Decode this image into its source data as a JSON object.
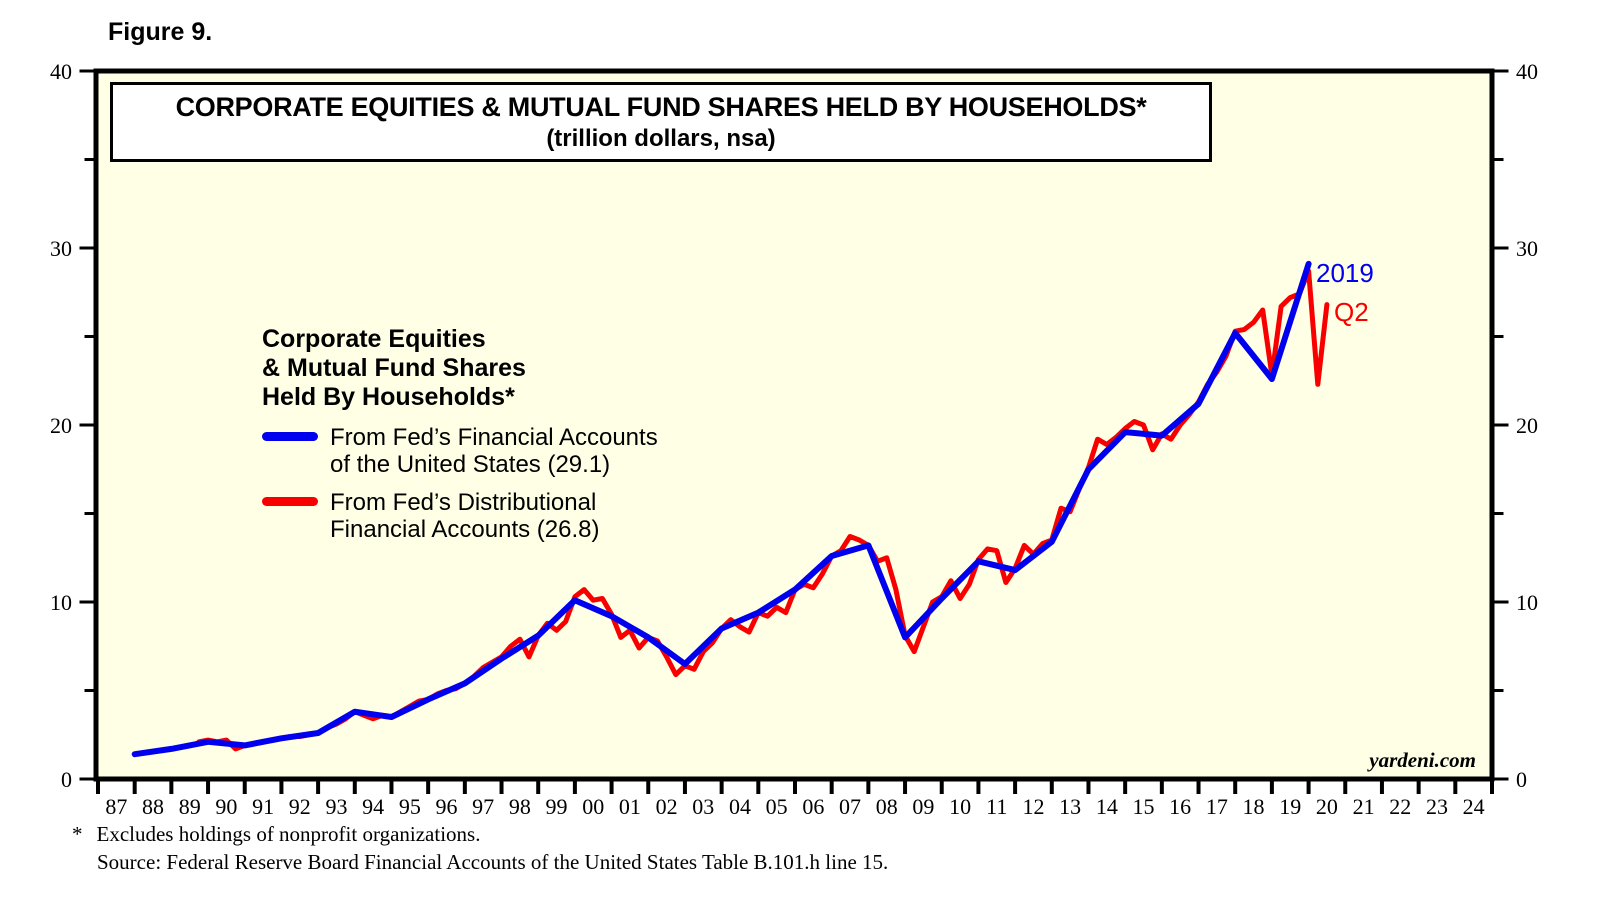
{
  "figure_label": "Figure 9.",
  "title": {
    "line1": "CORPORATE EQUITIES & MUTUAL FUND SHARES HELD BY HOUSEHOLDS*",
    "line2": "(trillion dollars, nsa)"
  },
  "legend": {
    "header_lines": [
      "Corporate Equities",
      "& Mutual Fund Shares",
      "Held By Households*"
    ],
    "items": [
      {
        "color": "#0000EE",
        "label_lines": [
          "From Fed’s Financial Accounts",
          "of the United States (29.1)"
        ]
      },
      {
        "color": "#F80000",
        "label_lines": [
          "From Fed’s Distributional",
          "Financial Accounts (26.8)"
        ]
      }
    ]
  },
  "annotations": [
    {
      "text": "2019",
      "color": "#0000EE"
    },
    {
      "text": "Q2",
      "color": "#F80000"
    }
  ],
  "watermark": "yardeni.com",
  "footnotes": {
    "asterisk": "*",
    "line1": "Excludes holdings of nonprofit organizations.",
    "line2": "Source: Federal Reserve Board Financial Accounts of the United States Table B.101.h line 15."
  },
  "chart_data": {
    "type": "line",
    "title": "CORPORATE EQUITIES & MUTUAL FUND SHARES HELD BY HOUSEHOLDS*",
    "subtitle": "(trillion dollars, nsa)",
    "background": "#FFFFE6",
    "ylim": [
      0,
      40
    ],
    "y_ticks": [
      0,
      10,
      20,
      30,
      40
    ],
    "y_minor_step": 5,
    "x_labels": [
      "87",
      "88",
      "89",
      "90",
      "91",
      "92",
      "93",
      "94",
      "95",
      "96",
      "97",
      "98",
      "99",
      "00",
      "01",
      "02",
      "03",
      "04",
      "05",
      "06",
      "07",
      "08",
      "09",
      "10",
      "11",
      "12",
      "13",
      "14",
      "15",
      "16",
      "17",
      "18",
      "19",
      "20",
      "21",
      "22",
      "23",
      "24"
    ],
    "legend_position": "upper-left",
    "grid": false,
    "series": [
      {
        "name": "From Fed's Financial Accounts of the United States",
        "latest_label": "2019",
        "latest_value": 29.1,
        "color": "#0000EE",
        "frequency": "annual",
        "start_year": 1987,
        "end_year": 2019,
        "values": [
          1.4,
          1.7,
          2.1,
          1.9,
          2.3,
          2.6,
          3.8,
          3.5,
          4.5,
          5.4,
          6.8,
          8.1,
          10.1,
          9.2,
          8.0,
          6.5,
          8.5,
          9.4,
          10.7,
          12.6,
          13.2,
          8.0,
          10.2,
          12.3,
          11.8,
          13.4,
          17.5,
          19.6,
          19.4,
          21.2,
          25.2,
          22.6,
          29.1
        ]
      },
      {
        "name": "From Fed's Distributional Financial Accounts",
        "latest_label": "Q2",
        "latest_value": 26.8,
        "color": "#F80000",
        "frequency": "quarterly",
        "start": "1989Q3",
        "end": "2020Q2",
        "values": [
          2.1,
          2.2,
          2.1,
          2.2,
          1.7,
          1.9,
          2.0,
          2.1,
          2.2,
          2.3,
          2.4,
          2.4,
          2.5,
          2.6,
          2.9,
          3.1,
          3.4,
          3.8,
          3.6,
          3.4,
          3.6,
          3.5,
          3.8,
          4.1,
          4.4,
          4.5,
          4.8,
          5.0,
          5.1,
          5.4,
          5.8,
          6.3,
          6.6,
          6.9,
          7.5,
          7.9,
          6.9,
          8.1,
          8.8,
          8.4,
          8.9,
          10.3,
          10.7,
          10.1,
          10.2,
          9.3,
          8.0,
          8.4,
          7.4,
          8.0,
          7.8,
          6.9,
          5.9,
          6.4,
          6.2,
          7.2,
          7.7,
          8.5,
          9.0,
          8.6,
          8.3,
          9.4,
          9.2,
          9.7,
          9.4,
          10.7,
          11.0,
          10.8,
          11.6,
          12.6,
          12.9,
          13.7,
          13.5,
          13.2,
          12.3,
          12.5,
          10.7,
          8.1,
          7.2,
          8.6,
          10.0,
          10.3,
          11.2,
          10.2,
          11.0,
          12.4,
          13.0,
          12.9,
          11.1,
          11.9,
          13.2,
          12.7,
          13.3,
          13.5,
          15.3,
          15.1,
          16.4,
          17.6,
          19.2,
          18.9,
          19.3,
          19.8,
          20.2,
          20.0,
          18.6,
          19.5,
          19.2,
          20.0,
          20.6,
          21.3,
          22.3,
          23.0,
          23.9,
          25.3,
          25.4,
          25.8,
          26.5,
          22.8,
          26.7,
          27.2,
          27.4,
          28.7,
          22.3,
          26.8
        ]
      }
    ]
  }
}
